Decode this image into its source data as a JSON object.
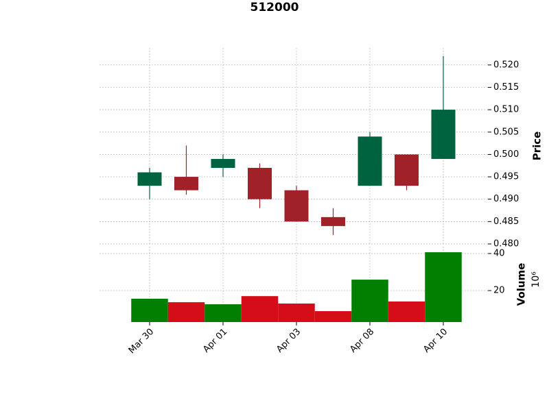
{
  "chart_data": {
    "type": "candlestick",
    "title": "512000",
    "categories": [
      "Mar 30",
      null,
      "Apr 01",
      null,
      "Apr 03",
      null,
      "Apr 08",
      null,
      "Apr 10"
    ],
    "open": [
      0.493,
      0.495,
      0.497,
      0.497,
      0.492,
      0.486,
      0.493,
      0.5,
      0.499
    ],
    "high": [
      0.497,
      0.502,
      0.5,
      0.498,
      0.493,
      0.488,
      0.505,
      0.5,
      0.522
    ],
    "low": [
      0.49,
      0.491,
      0.495,
      0.488,
      0.485,
      0.482,
      0.493,
      0.492,
      0.499
    ],
    "close": [
      0.496,
      0.492,
      0.499,
      0.49,
      0.485,
      0.484,
      0.504,
      0.493,
      0.51
    ],
    "ylabel": "Price",
    "ylim": [
      0.48,
      0.5238
    ],
    "yticks": [
      {
        "value": 0.48,
        "label": "0.480"
      },
      {
        "value": 0.485,
        "label": "0.485"
      },
      {
        "value": 0.49,
        "label": "0.490"
      },
      {
        "value": 0.495,
        "label": "0.495"
      },
      {
        "value": 0.5,
        "label": "0.500"
      },
      {
        "value": 0.505,
        "label": "0.505"
      },
      {
        "value": 0.51,
        "label": "0.510"
      },
      {
        "value": 0.515,
        "label": "0.515"
      },
      {
        "value": 0.52,
        "label": "0.520"
      }
    ],
    "grid": true,
    "up_color": "#006340",
    "down_color": "#a02128",
    "volume": {
      "values": [
        15.6,
        13.7,
        12.6,
        17.0,
        13.0,
        8.9,
        25.9,
        14.1,
        40.7
      ],
      "ylabel": "Volume",
      "offset_label": "10⁶",
      "ylim": [
        3,
        43.7
      ],
      "yticks": [
        20,
        40
      ],
      "up_color": "#007f00",
      "down_color": "#d50d18"
    }
  }
}
